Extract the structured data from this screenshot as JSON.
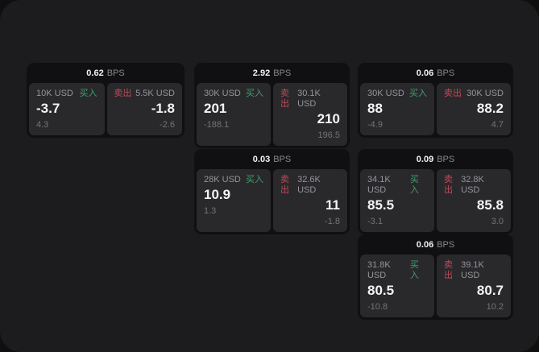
{
  "colors": {
    "panel_bg": "#1c1c1e",
    "card_bg": "#101012",
    "tile_bg": "#29292c",
    "buy_green": "#3ea06a",
    "sell_red": "#c04a58",
    "value_white": "#f4f4f5",
    "muted_gray": "#94949a"
  },
  "cards": [
    {
      "bps_value": "0.62",
      "bps_unit": "BPS",
      "buy": {
        "amount": "10K USD",
        "side_label": "买入",
        "value": "-3.7",
        "sub": "4.3"
      },
      "sell": {
        "side_label": "卖出",
        "amount": "5.5K USD",
        "value": "-1.8",
        "sub": "-2.6"
      }
    },
    {
      "bps_value": "2.92",
      "bps_unit": "BPS",
      "buy": {
        "amount": "30K USD",
        "side_label": "买入",
        "value": "201",
        "sub": "-188.1"
      },
      "sell": {
        "side_label": "卖出",
        "amount": "30.1K USD",
        "value": "210",
        "sub": "196.5"
      }
    },
    {
      "bps_value": "0.06",
      "bps_unit": "BPS",
      "buy": {
        "amount": "30K USD",
        "side_label": "买入",
        "value": "88",
        "sub": "-4.9"
      },
      "sell": {
        "side_label": "卖出",
        "amount": "30K USD",
        "value": "88.2",
        "sub": "4.7"
      }
    },
    {
      "bps_value": "0.03",
      "bps_unit": "BPS",
      "buy": {
        "amount": "28K USD",
        "side_label": "买入",
        "value": "10.9",
        "sub": "1.3"
      },
      "sell": {
        "side_label": "卖出",
        "amount": "32.6K USD",
        "value": "11",
        "sub": "-1.8"
      }
    },
    {
      "bps_value": "0.09",
      "bps_unit": "BPS",
      "buy": {
        "amount": "34.1K USD",
        "side_label": "买入",
        "value": "85.5",
        "sub": "-3.1"
      },
      "sell": {
        "side_label": "卖出",
        "amount": "32.8K USD",
        "value": "85.8",
        "sub": "3.0"
      }
    },
    {
      "bps_value": "0.06",
      "bps_unit": "BPS",
      "buy": {
        "amount": "31.8K USD",
        "side_label": "买入",
        "value": "80.5",
        "sub": "-10.8"
      },
      "sell": {
        "side_label": "卖出",
        "amount": "39.1K USD",
        "value": "80.7",
        "sub": "10.2"
      }
    }
  ]
}
